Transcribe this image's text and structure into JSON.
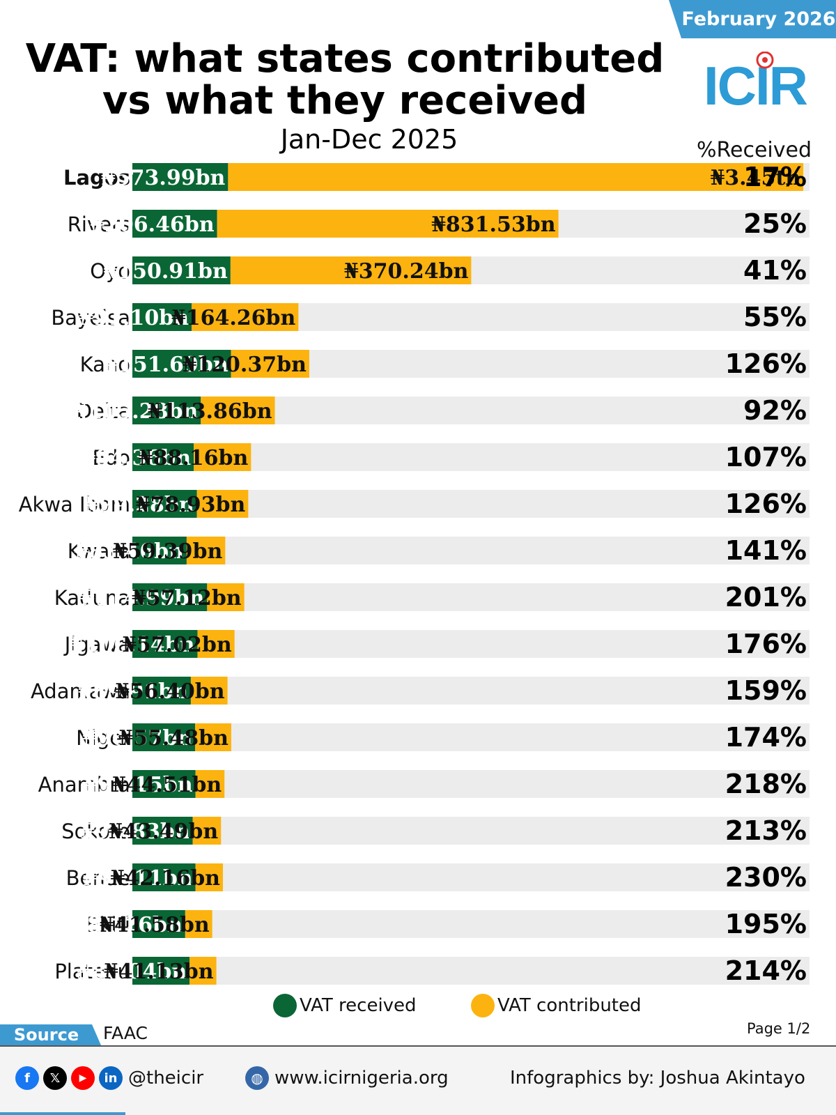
{
  "header": {
    "date_badge": "February 2026",
    "title_line1": "VAT: what states contributed",
    "title_line2": "vs what they received",
    "subtitle": "Jan-Dec 2025",
    "pct_header": "%Received",
    "logo_text": "ICIR"
  },
  "chart_data": {
    "type": "bar",
    "orientation": "horizontal",
    "stacked": true,
    "categories": [
      "Lagos",
      "Rivers",
      "Oyo",
      "Bayelsa",
      "Kano",
      "Delta",
      "Edo",
      "Akwa Ibom",
      "Kwara",
      "Kaduna",
      "Jigawa",
      "Adamawa",
      "Niger",
      "Anambra",
      "Sokoto",
      "Benue",
      "Ekiti",
      "Plateau"
    ],
    "series": [
      {
        "name": "VAT received",
        "color": "#0a6634",
        "values_bn": [
          573.99,
          206.46,
          150.91,
          91.1,
          151.69,
          105.28,
          94.36,
          99.28,
          83.46,
          114.99,
          100.14,
          89.91,
          96.57,
          97.15,
          92.83,
          97.11,
          81.26,
          88.04
        ],
        "labels": [
          "₦573.99bn",
          "₦206.46bn",
          "₦150.91bn",
          "₦91.10bn",
          "₦151.69bn",
          "₦105.28bn",
          "₦94.36bn",
          "₦99.28bn",
          "₦83.46bn",
          "₦114.99bn",
          "₦100.14bn",
          "₦89.91bn",
          "₦96.57bn",
          "₦97.15bn",
          "₦92.83bn",
          "₦97.11bn",
          "₦81.26bn",
          "₦88.04bn"
        ]
      },
      {
        "name": "VAT contributed",
        "color": "#fcb30f",
        "values_bn": [
          3450,
          831.53,
          370.24,
          164.26,
          120.37,
          113.86,
          88.16,
          78.93,
          59.39,
          57.12,
          57.02,
          56.4,
          55.48,
          44.51,
          43.49,
          42.16,
          41.58,
          41.13
        ],
        "labels": [
          "₦3.45tn",
          "₦831.53bn",
          "₦370.24bn",
          "₦164.26bn",
          "₦120.37bn",
          "₦113.86bn",
          "₦88.16bn",
          "₦78.93bn",
          "₦59.39bn",
          "₦57.12bn",
          "₦57.02bn",
          "₦56.40bn",
          "₦55.48bn",
          "₦44.51bn",
          "₦43.49bn",
          "₦42.16bn",
          "₦41.58bn",
          "₦41.13bn"
        ]
      }
    ],
    "percent_received": [
      "17%",
      "25%",
      "41%",
      "55%",
      "126%",
      "92%",
      "107%",
      "126%",
      "141%",
      "201%",
      "176%",
      "159%",
      "174%",
      "218%",
      "213%",
      "230%",
      "195%",
      "214%"
    ],
    "highlight_category": "Lagos",
    "track_color": "#ececec",
    "legend": [
      "VAT received",
      "VAT contributed"
    ],
    "legend_position": "bottom"
  },
  "legend": {
    "received": "VAT received",
    "contributed": "VAT contributed"
  },
  "source": {
    "label": "Source",
    "text": "FAAC"
  },
  "page": "Page 1/2",
  "footer": {
    "handle": "@theicir",
    "website": "www.icirnigeria.org",
    "credit": "Infographics by: Joshua Akintayo",
    "icons": [
      "facebook-icon",
      "x-icon",
      "youtube-icon",
      "linkedin-icon",
      "globe-icon"
    ]
  }
}
